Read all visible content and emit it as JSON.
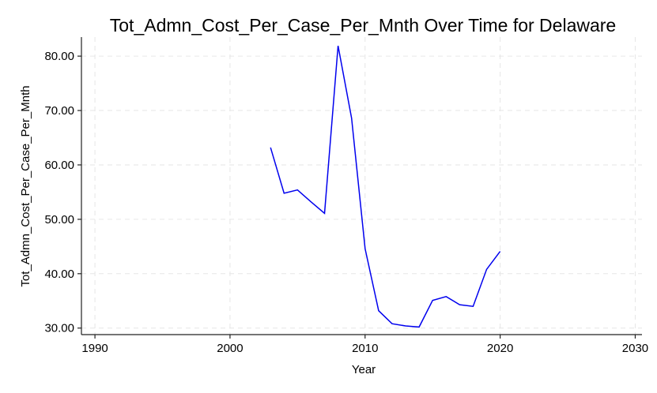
{
  "chart_data": {
    "type": "line",
    "title": "Tot_Admn_Cost_Per_Case_Per_Mnth Over Time for Delaware",
    "xlabel": "Year",
    "ylabel": "Tot_Admn_Cost_Per_Case_Per_Mnth",
    "xlim": [
      1989,
      2030.5
    ],
    "ylim": [
      28.8,
      83.5
    ],
    "xticks": [
      1990,
      2000,
      2010,
      2020,
      2030
    ],
    "xtick_labels": [
      "1990",
      "2000",
      "2010",
      "2020",
      "2030"
    ],
    "yticks": [
      30,
      40,
      50,
      60,
      70,
      80
    ],
    "ytick_labels": [
      "30.00",
      "40.00",
      "50.00",
      "60.00",
      "70.00",
      "80.00"
    ],
    "grid": true,
    "series": [
      {
        "color": "#0000ee",
        "x": [
          2003,
          2004,
          2005,
          2006,
          2007,
          2008,
          2009,
          2010,
          2011,
          2012,
          2013,
          2014,
          2015,
          2016,
          2017,
          2018,
          2019,
          2020
        ],
        "values": [
          63.2,
          54.8,
          55.4,
          53.2,
          51.1,
          81.9,
          68.6,
          44.6,
          33.2,
          30.8,
          30.4,
          30.2,
          35.1,
          35.8,
          34.3,
          34.0,
          40.8,
          44.1
        ]
      }
    ]
  }
}
